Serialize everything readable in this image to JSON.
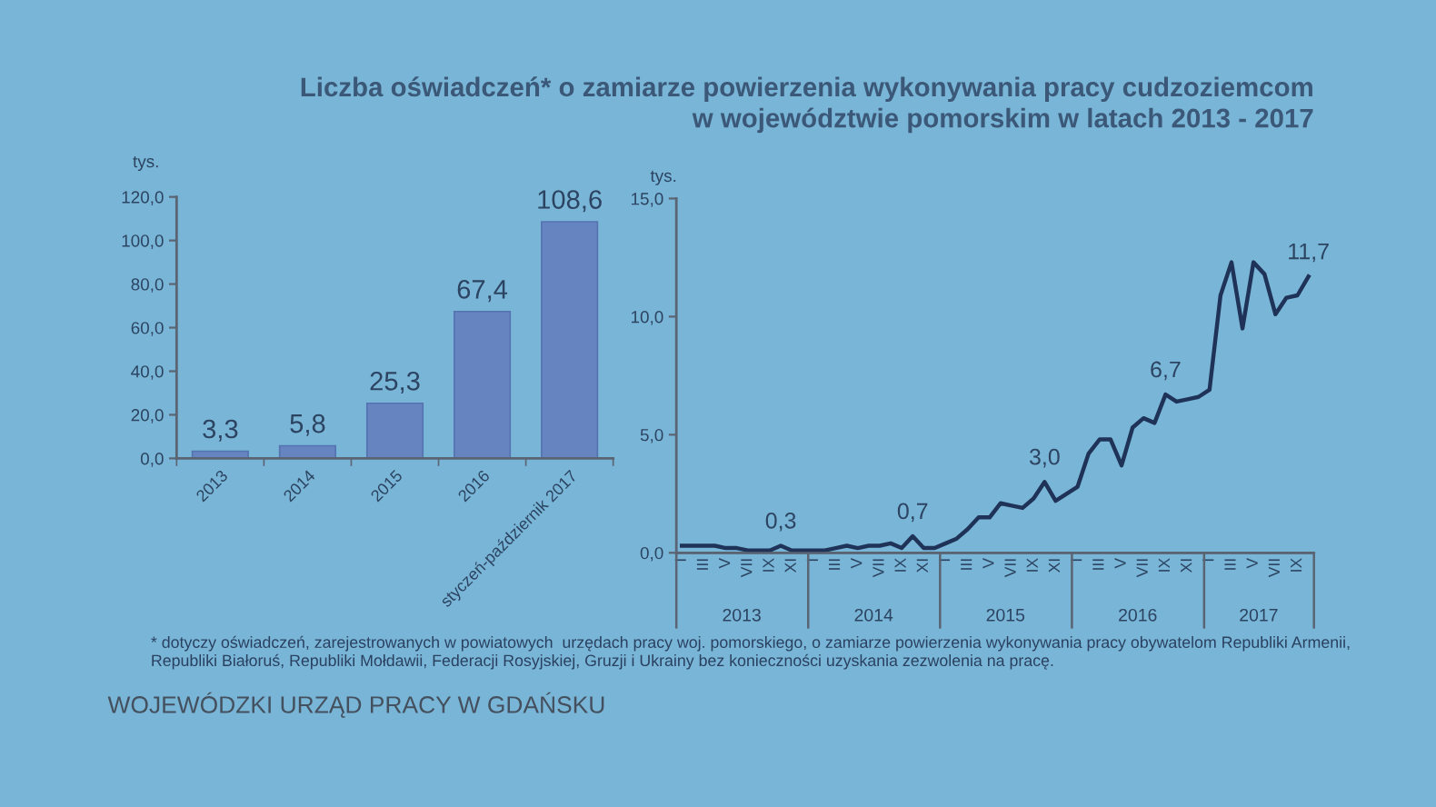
{
  "chart_data": [
    {
      "type": "bar",
      "title": "Liczba oświadczeń* o zamiarze powierzenia wykonywania pracy cudzoziemcom\nw województwie pomorskim w latach 2013 - 2017",
      "ylabel": "tys.",
      "categories": [
        "2013",
        "2014",
        "2015",
        "2016",
        "styczeń-październik 2017"
      ],
      "values": [
        3.3,
        5.8,
        25.3,
        67.4,
        108.6
      ],
      "value_labels": [
        "3,3",
        "5,8",
        "25,3",
        "67,4",
        "108,6"
      ],
      "color": "#6584c0",
      "ylim": [
        0,
        120
      ],
      "yticks": [
        {
          "value": 0,
          "label": "0,0"
        },
        {
          "value": 20,
          "label": "20,0"
        },
        {
          "value": 40,
          "label": "40,0"
        },
        {
          "value": 60,
          "label": "60,0"
        },
        {
          "value": 80,
          "label": "80,0"
        },
        {
          "value": 100,
          "label": "100,0"
        },
        {
          "value": 120,
          "label": "120,0"
        }
      ],
      "annotations": [
        "* dotyczy oświadczeń, zarejestrowanych w powiatowych  urzędach pracy woj. pomorskiego, o zamiarze powierzenia wykonywania pracy obywatelom Republiki Armenii,\nRepubliki Białoruś, Republiki Mołdawii, Federacji Rosyjskiej, Gruzji i Ukrainy bez konieczności uzyskania zezwolenia na pracę.",
        "WOJEWÓDZKI URZĄD PRACY W GDAŃSKU"
      ]
    },
    {
      "type": "line",
      "ylabel": "tys.",
      "categories": [
        "I",
        null,
        "III",
        null,
        "V",
        null,
        "VII",
        null,
        "IX",
        null,
        "XI",
        null,
        "I",
        null,
        "III",
        null,
        "V",
        null,
        "VII",
        null,
        "IX",
        null,
        "XI",
        null,
        "I",
        null,
        "III",
        null,
        "V",
        null,
        "VII",
        null,
        "IX",
        null,
        "XI",
        null,
        "I",
        null,
        "III",
        null,
        "V",
        null,
        "VII",
        null,
        "IX",
        null,
        "XI",
        null,
        "I",
        null,
        "III",
        null,
        "V",
        null,
        "VII",
        null,
        "IX",
        null
      ],
      "series": [
        {
          "color": "#1f3358",
          "values": [
            0.3,
            0.3,
            0.3,
            0.3,
            0.2,
            0.2,
            0.1,
            0.1,
            0.1,
            0.3,
            0.1,
            0.1,
            0.1,
            0.1,
            0.2,
            0.3,
            0.2,
            0.3,
            0.3,
            0.4,
            0.2,
            0.7,
            0.2,
            0.2,
            0.4,
            0.6,
            1.0,
            1.5,
            1.5,
            2.1,
            2.0,
            1.9,
            2.3,
            3.0,
            2.2,
            2.5,
            2.8,
            4.2,
            4.8,
            4.8,
            3.7,
            5.3,
            5.7,
            5.5,
            6.7,
            6.4,
            6.5,
            6.6,
            6.9,
            10.9,
            12.3,
            9.5,
            12.3,
            11.8,
            10.1,
            10.8,
            10.9,
            11.7
          ],
          "value_labels": [
            null,
            null,
            null,
            null,
            null,
            null,
            null,
            null,
            null,
            "0,3",
            null,
            null,
            null,
            null,
            null,
            null,
            null,
            null,
            null,
            null,
            null,
            "0,7",
            null,
            null,
            null,
            null,
            null,
            null,
            null,
            null,
            null,
            null,
            null,
            "3,0",
            null,
            null,
            null,
            null,
            null,
            null,
            null,
            null,
            null,
            null,
            "6,7",
            null,
            null,
            null,
            null,
            null,
            null,
            null,
            null,
            null,
            null,
            null,
            null,
            "11,7"
          ]
        }
      ],
      "x2lim": [
        "2013-01",
        "2017-11"
      ],
      "x2ticks": [
        {
          "value": "2013-07",
          "label": "2013"
        },
        {
          "value": "2014-07",
          "label": "2014"
        },
        {
          "value": "2015-07",
          "label": "2015"
        },
        {
          "value": "2016-07",
          "label": "2016"
        },
        {
          "value": "2017-06",
          "label": "2017"
        }
      ],
      "ylim": [
        0,
        15
      ],
      "yticks": [
        {
          "value": 0,
          "label": "0,0"
        },
        {
          "value": 5,
          "label": "5,0"
        },
        {
          "value": 10,
          "label": "10,0"
        },
        {
          "value": 15,
          "label": "15,0"
        }
      ]
    }
  ]
}
